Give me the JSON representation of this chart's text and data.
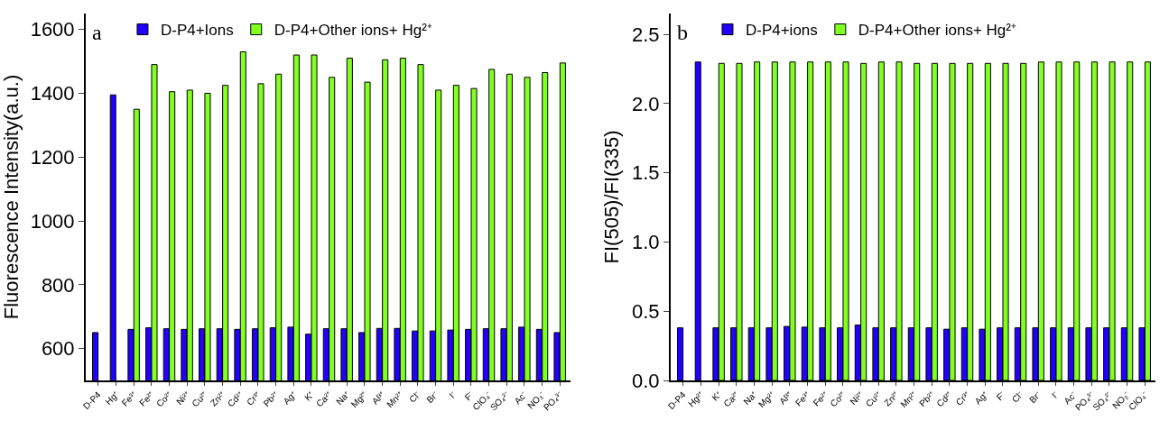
{
  "chart_data": [
    {
      "type": "bar",
      "ylabel": "Fluorescence Intensity(a.u.)",
      "annotations": [
        "a"
      ],
      "legend": "top",
      "grid": false,
      "categories": [
        "D-P4",
        "Hg⁺",
        "Fe³⁺",
        "Fe²⁺",
        "Co²⁺",
        "Ni²⁺",
        "Cu²⁺",
        "Zn²⁺",
        "Cd²⁺",
        "Cr³⁺",
        "Pb²⁺",
        "Ag⁺",
        "K⁺",
        "Ca²⁺",
        "Na⁺",
        "Mg²⁺",
        "Al³⁺",
        "Mn²⁺",
        "Cl⁻",
        "Br⁻",
        "I⁻",
        "F⁻",
        "ClO₄⁻",
        "SO₄²⁻",
        "Ac⁻",
        "NO₃⁻",
        "PO₄³⁻"
      ],
      "ylim": [
        500,
        1650
      ],
      "yticks": [
        600,
        800,
        1000,
        1200,
        1400,
        1600
      ],
      "series": [
        {
          "name": "D-P4+Ions",
          "color": "#2200ff",
          "values": [
            650,
            1395,
            660,
            665,
            662,
            660,
            662,
            662,
            660,
            662,
            665,
            667,
            645,
            662,
            662,
            650,
            663,
            663,
            655,
            655,
            658,
            660,
            662,
            662,
            667,
            660,
            650
          ]
        },
        {
          "name": "D-P4+Other ions+ Hg²⁺",
          "color": "#80ff20",
          "values": [
            null,
            null,
            1350,
            1490,
            1405,
            1410,
            1400,
            1425,
            1530,
            1430,
            1460,
            1520,
            1520,
            1450,
            1510,
            1435,
            1505,
            1510,
            1490,
            1410,
            1425,
            1415,
            1475,
            1460,
            1450,
            1465,
            1495
          ]
        }
      ]
    },
    {
      "type": "bar",
      "ylabel": "FI(505)/FI(335)",
      "annotations": [
        "b"
      ],
      "legend": "top",
      "grid": false,
      "categories": [
        "D-P4",
        "Hg²⁺",
        "K⁺",
        "Ca²⁺",
        "Na⁺",
        "Mg²⁺",
        "Al³⁺",
        "Fe³⁺",
        "Fe²⁺",
        "Co²⁺",
        "Ni²⁺",
        "Cu²⁺",
        "Zn²⁺",
        "Mn²⁺",
        "Pb²⁺",
        "Cd²⁺",
        "Cr³⁺",
        "Ag⁺",
        "F⁻",
        "Cl⁻",
        "Br⁻",
        "I⁻",
        "Ac⁻",
        "PO₄³⁻",
        "SO₄²⁻",
        "NO₃⁻",
        "ClO₄⁻"
      ],
      "ylim": [
        0,
        2.65
      ],
      "yticks": [
        {
          "value": 0,
          "label": "0.0"
        },
        {
          "value": 0.5,
          "label": "0.5"
        },
        {
          "value": 1,
          "label": "1.0"
        },
        {
          "value": 1.5,
          "label": "1.5"
        },
        {
          "value": 2,
          "label": "2.0"
        },
        {
          "value": 2.5,
          "label": "2.5"
        }
      ],
      "series": [
        {
          "name": "D-P4+ions",
          "color": "#2200ff",
          "values": [
            0.38,
            2.3,
            0.38,
            0.38,
            0.38,
            0.38,
            0.39,
            0.385,
            0.38,
            0.38,
            0.4,
            0.38,
            0.38,
            0.38,
            0.38,
            0.37,
            0.38,
            0.37,
            0.38,
            0.38,
            0.38,
            0.38,
            0.38,
            0.38,
            0.38,
            0.38,
            0.38
          ]
        },
        {
          "name": "D-P4+Other ions+ Hg²⁺",
          "color": "#80ff20",
          "values": [
            null,
            null,
            2.29,
            2.29,
            2.3,
            2.3,
            2.3,
            2.3,
            2.3,
            2.3,
            2.29,
            2.3,
            2.3,
            2.29,
            2.29,
            2.29,
            2.29,
            2.29,
            2.29,
            2.29,
            2.3,
            2.3,
            2.3,
            2.3,
            2.3,
            2.3,
            2.3
          ]
        }
      ]
    }
  ]
}
